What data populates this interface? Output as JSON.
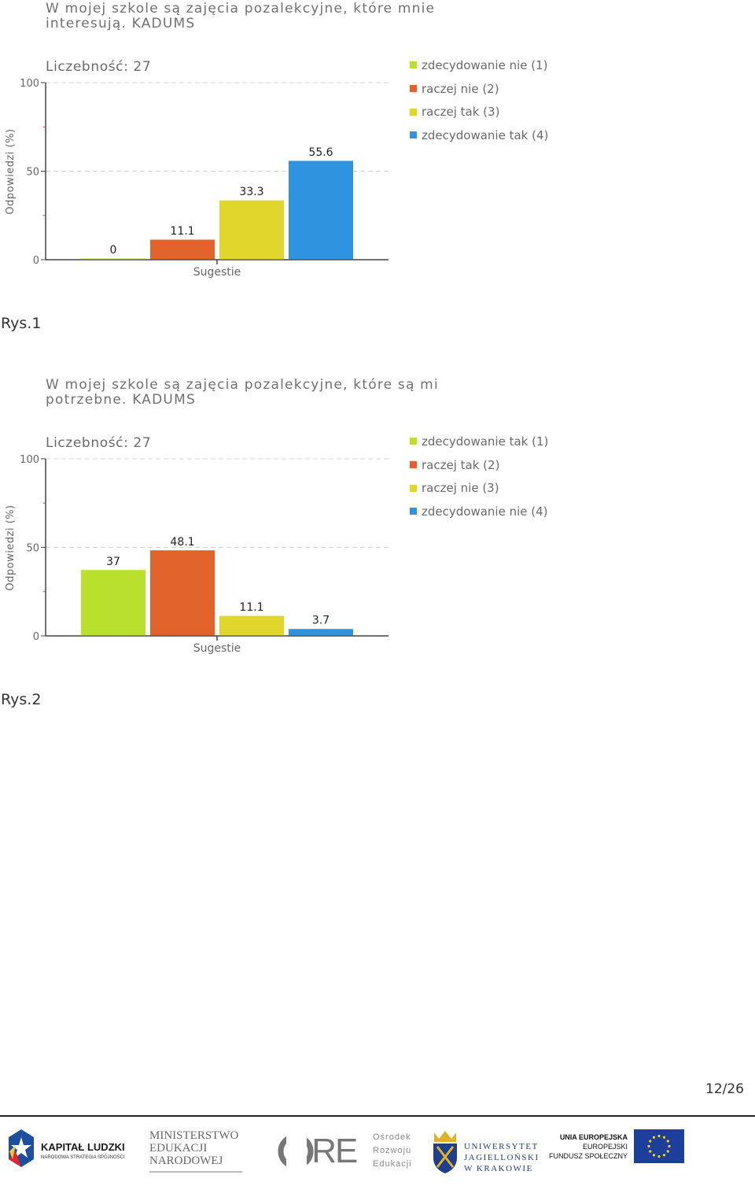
{
  "charts": [
    {
      "title": "W mojej szkole są zajęcia pozalekcyjne, które mnie interesują. KADUMS",
      "count_label": "Liczebność: 27",
      "ylabel": "Odpowiedzi (%)",
      "xlabel": "Sugestie",
      "caption": "Rys.1",
      "legend": [
        "zdecydowanie nie (1)",
        "raczej nie (2)",
        "raczej tak (3)",
        "zdecydowanie tak (4)"
      ],
      "colors": [
        "#b8e02c",
        "#e2622c",
        "#e0d62c",
        "#2f93df"
      ]
    },
    {
      "title": "W mojej szkole są zajęcia pozalekcyjne, które są mi potrzebne. KADUMS",
      "count_label": "Liczebność: 27",
      "ylabel": "Odpowiedzi (%)",
      "xlabel": "Sugestie",
      "caption": "Rys.2",
      "legend": [
        "zdecydowanie tak (1)",
        "raczej tak (2)",
        "raczej nie (3)",
        "zdecydowanie nie (4)"
      ],
      "colors": [
        "#b8e02c",
        "#e2622c",
        "#e0d62c",
        "#2f93df"
      ]
    }
  ],
  "chart_data": [
    {
      "type": "bar",
      "title": "W mojej szkole są zajęcia pozalekcyjne, które mnie interesują. KADUMS",
      "xlabel": "Sugestie",
      "ylabel": "Odpowiedzi (%)",
      "ylim": [
        0,
        100
      ],
      "yticks": [
        0,
        50,
        100
      ],
      "grid": true,
      "legend_position": "right",
      "series": [
        {
          "name": "zdecydowanie nie (1)",
          "value": 0,
          "label": "0"
        },
        {
          "name": "raczej nie (2)",
          "value": 11.1,
          "label": "11.1"
        },
        {
          "name": "raczej tak (3)",
          "value": 33.3,
          "label": "33.3"
        },
        {
          "name": "zdecydowanie tak (4)",
          "value": 55.6,
          "label": "55.6"
        }
      ]
    },
    {
      "type": "bar",
      "title": "W mojej szkole są zajęcia pozalekcyjne, które są mi potrzebne. KADUMS",
      "xlabel": "Sugestie",
      "ylabel": "Odpowiedzi (%)",
      "ylim": [
        0,
        100
      ],
      "yticks": [
        0,
        50,
        100
      ],
      "grid": true,
      "legend_position": "right",
      "series": [
        {
          "name": "zdecydowanie tak (1)",
          "value": 37,
          "label": "37"
        },
        {
          "name": "raczej tak (2)",
          "value": 48.1,
          "label": "48.1"
        },
        {
          "name": "raczej nie (3)",
          "value": 11.1,
          "label": "11.1"
        },
        {
          "name": "zdecydowanie nie (4)",
          "value": 3.7,
          "label": "3.7"
        }
      ]
    }
  ],
  "page_number": "12/26",
  "footer": {
    "kapital_title": "KAPITAŁ LUDZKI",
    "kapital_sub": "NARODOWA STRATEGIA SPÓJNOŚCI",
    "men_line1": "MINISTERSTWO",
    "men_line2": "EDUKACJI",
    "men_line3": "NARODOWEJ",
    "ore_mark": "ORE",
    "ore_line1": "Ośrodek",
    "ore_line2": "Rozwoju",
    "ore_line3": "Edukacji",
    "uj_line1": "UNIWERSYTET",
    "uj_line2": "JAGIELLOŃSKI",
    "uj_line3": "W KRAKOWIE",
    "ue_line1": "UNIA EUROPEJSKA",
    "ue_line2": "EUROPEJSKI",
    "ue_line3": "FUNDUSZ SPOŁECZNY"
  }
}
